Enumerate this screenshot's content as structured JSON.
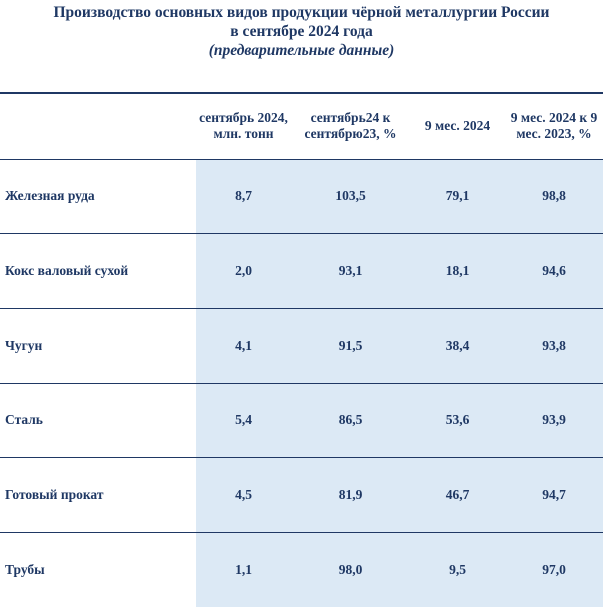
{
  "title": {
    "line1": "Производство основных видов продукции чёрной металлургии России",
    "line2": "в сентябре 2024 года",
    "line3": "(предварительные данные)"
  },
  "table": {
    "headers": [
      "",
      "сентябрь 2024, млн. тонн",
      "сентябрь24 к сентябрю23, %",
      "9 мес. 2024",
      "9 мес. 2024 к 9 мес. 2023, %"
    ],
    "rows": [
      [
        "Железная руда",
        "8,7",
        "103,5",
        "79,1",
        "98,8"
      ],
      [
        "Кокс валовый сухой",
        "2,0",
        "93,1",
        "18,1",
        "94,6"
      ],
      [
        "Чугун",
        "4,1",
        "91,5",
        "38,4",
        "93,8"
      ],
      [
        "Сталь",
        "5,4",
        "86,5",
        "53,6",
        "93,9"
      ],
      [
        "Готовый прокат",
        "4,5",
        "81,9",
        "46,7",
        "94,7"
      ],
      [
        "Трубы",
        "1,1",
        "98,0",
        "9,5",
        "97,0"
      ]
    ]
  },
  "colors": {
    "text": "#1f3864",
    "shade": "#dce9f5"
  }
}
